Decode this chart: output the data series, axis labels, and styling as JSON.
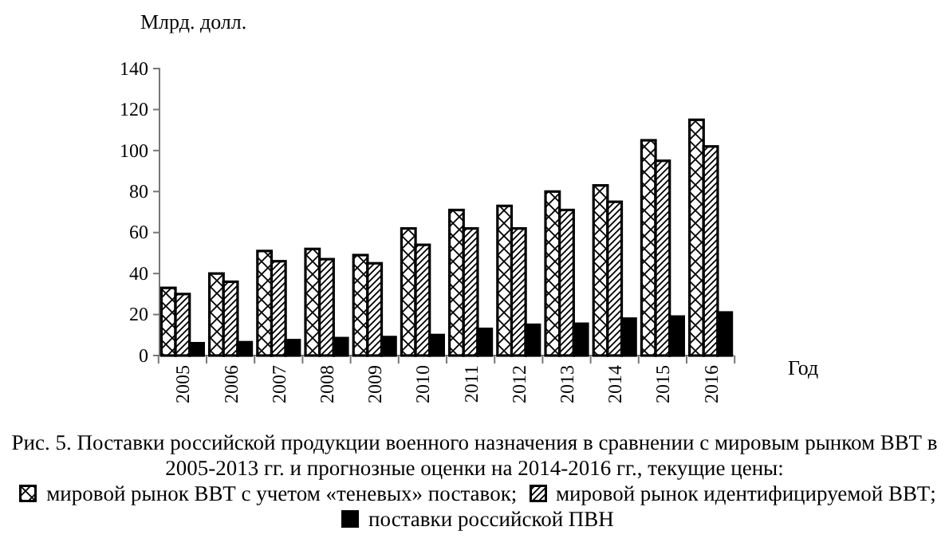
{
  "chart_data": {
    "type": "bar",
    "title": "Рис. 5. Поставки российской продукции военного назначения в сравнении с мировым рынком ВВТ в 2005-2013 гг. и прогнозные оценки на 2014-2016 гг., текущие цены:",
    "ylabel": "Млрд. долл.",
    "xlabel": "Год",
    "categories": [
      "2005",
      "2006",
      "2007",
      "2008",
      "2009",
      "2010",
      "2011",
      "2012",
      "2013",
      "2014",
      "2015",
      "2016"
    ],
    "series": [
      {
        "name": "мировой рынок ВВТ с учетом «теневых» поставок;",
        "color": "#000000",
        "values": [
          33,
          40,
          51,
          52,
          49,
          62,
          71,
          73,
          80,
          83,
          105,
          115
        ]
      },
      {
        "name": "мировой рынок идентифицируемой ВВТ;",
        "color": "#000000",
        "values": [
          30,
          36,
          46,
          47,
          45,
          54,
          62,
          62,
          71,
          75,
          95,
          102
        ]
      },
      {
        "name": "поставки российской ПВН",
        "color": "#000000",
        "values": [
          6,
          6.5,
          7.5,
          8.5,
          9,
          10,
          13,
          15,
          15.5,
          18,
          19,
          21
        ]
      }
    ],
    "ylim": [
      0,
      140
    ],
    "yticks": [
      0,
      20,
      40,
      60,
      80,
      100,
      120,
      140
    ],
    "grid": false,
    "legend": "bottom"
  }
}
